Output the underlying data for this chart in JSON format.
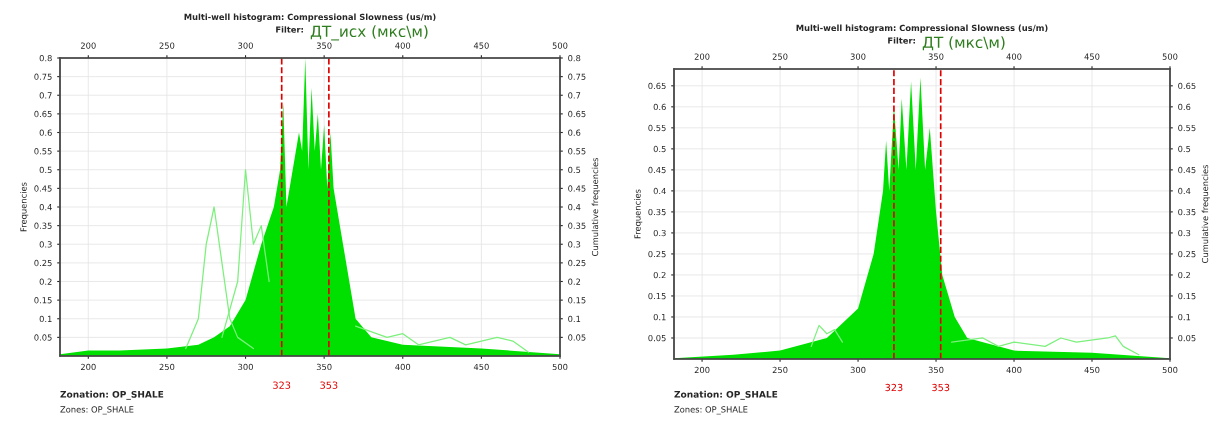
{
  "chart_data": [
    {
      "type": "line",
      "title": "Multi-well histogram: Compressional Slowness (us/m)",
      "subtitle": "Filter:",
      "xlabel": null,
      "ylabel": "Frequencies",
      "y2label": "Cumulative frequencies",
      "annotations": [
        "ДТ_исх (мкс\\м)",
        "Zonation: OP_SHALE",
        "Zones: OP_SHALE"
      ],
      "xlim": [
        182,
        500
      ],
      "xticks": [
        200,
        250,
        300,
        350,
        400,
        450,
        500
      ],
      "x2lim": [
        182,
        500
      ],
      "x2ticks": [
        200,
        250,
        300,
        350,
        400,
        450,
        500
      ],
      "ylim": [
        0,
        0.8
      ],
      "yticks": [
        0.05,
        0.1,
        0.15,
        0.2,
        0.25,
        0.3,
        0.35,
        0.4,
        0.45,
        0.5,
        0.55,
        0.6,
        0.65,
        0.7,
        0.75,
        0.8
      ],
      "y2lim": [
        0,
        0.8
      ],
      "y2ticks": [
        0.05,
        0.1,
        0.15,
        0.2,
        0.25,
        0.3,
        0.35,
        0.4,
        0.45,
        0.5,
        0.55,
        0.6,
        0.65,
        0.7,
        0.75,
        0.8
      ],
      "grid": true,
      "legend": false,
      "ref_lines": [
        {
          "axis": "x",
          "value": 323,
          "label": "323",
          "color": "#e00000",
          "line_style": "dashed"
        },
        {
          "axis": "x",
          "value": 353,
          "label": "353",
          "color": "#e00000",
          "line_style": "dashed"
        }
      ],
      "series": [
        {
          "type": "area",
          "color": "#00e000",
          "x": [
            182,
            200,
            220,
            250,
            270,
            280,
            290,
            300,
            310,
            318,
            322,
            324,
            326,
            330,
            334,
            336,
            338,
            340,
            342,
            344,
            346,
            348,
            350,
            352,
            354,
            356,
            358,
            362,
            366,
            370,
            380,
            400,
            450,
            500
          ],
          "values": [
            0.005,
            0.015,
            0.015,
            0.02,
            0.03,
            0.05,
            0.08,
            0.15,
            0.3,
            0.4,
            0.5,
            0.68,
            0.4,
            0.5,
            0.6,
            0.55,
            0.8,
            0.5,
            0.72,
            0.55,
            0.65,
            0.5,
            0.62,
            0.45,
            0.6,
            0.45,
            0.4,
            0.3,
            0.2,
            0.1,
            0.05,
            0.03,
            0.02,
            0.005
          ]
        },
        {
          "type": "line",
          "color": "#7cf07c",
          "x": [
            262,
            270,
            275,
            280,
            285,
            290,
            295,
            305
          ],
          "values": [
            0.02,
            0.1,
            0.3,
            0.4,
            0.25,
            0.1,
            0.05,
            0.02
          ]
        },
        {
          "type": "line",
          "color": "#7cf07c",
          "x": [
            285,
            295,
            300,
            305,
            310,
            315
          ],
          "values": [
            0.05,
            0.2,
            0.5,
            0.3,
            0.35,
            0.2
          ]
        },
        {
          "type": "line",
          "color": "#7cf07c",
          "x": [
            370,
            390,
            400,
            410,
            430,
            440,
            450,
            460,
            470,
            480
          ],
          "values": [
            0.08,
            0.05,
            0.06,
            0.03,
            0.05,
            0.03,
            0.04,
            0.05,
            0.04,
            0.01
          ]
        }
      ]
    },
    {
      "type": "line",
      "title": "Multi-well histogram: Compressional Slowness (us/m)",
      "subtitle": "Filter:",
      "xlabel": null,
      "ylabel": "Frequencies",
      "y2label": "Cumulative frequencies",
      "annotations": [
        "ДТ (мкс\\м)",
        "Zonation: OP_SHALE",
        "Zones: OP_SHALE"
      ],
      "xlim": [
        182,
        500
      ],
      "xticks": [
        200,
        250,
        300,
        350,
        400,
        450,
        500
      ],
      "x2lim": [
        182,
        500
      ],
      "x2ticks": [
        200,
        250,
        300,
        350,
        400,
        450,
        500
      ],
      "ylim": [
        0,
        0.69
      ],
      "yticks": [
        0.05,
        0.1,
        0.15,
        0.2,
        0.25,
        0.3,
        0.35,
        0.4,
        0.45,
        0.5,
        0.55,
        0.6,
        0.65
      ],
      "y2lim": [
        0,
        0.69
      ],
      "y2ticks": [
        0.05,
        0.1,
        0.15,
        0.2,
        0.25,
        0.3,
        0.35,
        0.4,
        0.45,
        0.5,
        0.55,
        0.6,
        0.65
      ],
      "grid": true,
      "legend": false,
      "ref_lines": [
        {
          "axis": "x",
          "value": 323,
          "label": "323",
          "color": "#e00000",
          "line_style": "dashed"
        },
        {
          "axis": "x",
          "value": 353,
          "label": "353",
          "color": "#e00000",
          "line_style": "dashed"
        }
      ],
      "series": [
        {
          "type": "area",
          "color": "#00e000",
          "x": [
            182,
            220,
            250,
            280,
            300,
            310,
            316,
            318,
            320,
            323,
            326,
            328,
            331,
            334,
            337,
            340,
            343,
            346,
            350,
            354,
            358,
            362,
            370,
            400,
            450,
            500
          ],
          "values": [
            0.002,
            0.01,
            0.02,
            0.05,
            0.12,
            0.25,
            0.4,
            0.52,
            0.4,
            0.6,
            0.45,
            0.62,
            0.45,
            0.66,
            0.45,
            0.67,
            0.45,
            0.55,
            0.35,
            0.2,
            0.15,
            0.1,
            0.05,
            0.02,
            0.015,
            0.002
          ]
        },
        {
          "type": "line",
          "color": "#7cf07c",
          "x": [
            270,
            275,
            280,
            285,
            290
          ],
          "values": [
            0.03,
            0.08,
            0.06,
            0.07,
            0.04
          ]
        },
        {
          "type": "line",
          "color": "#7cf07c",
          "x": [
            360,
            380,
            390,
            400,
            420,
            430,
            440,
            460,
            465,
            470,
            480
          ],
          "values": [
            0.04,
            0.05,
            0.03,
            0.04,
            0.03,
            0.05,
            0.04,
            0.05,
            0.055,
            0.03,
            0.01
          ]
        }
      ]
    }
  ]
}
